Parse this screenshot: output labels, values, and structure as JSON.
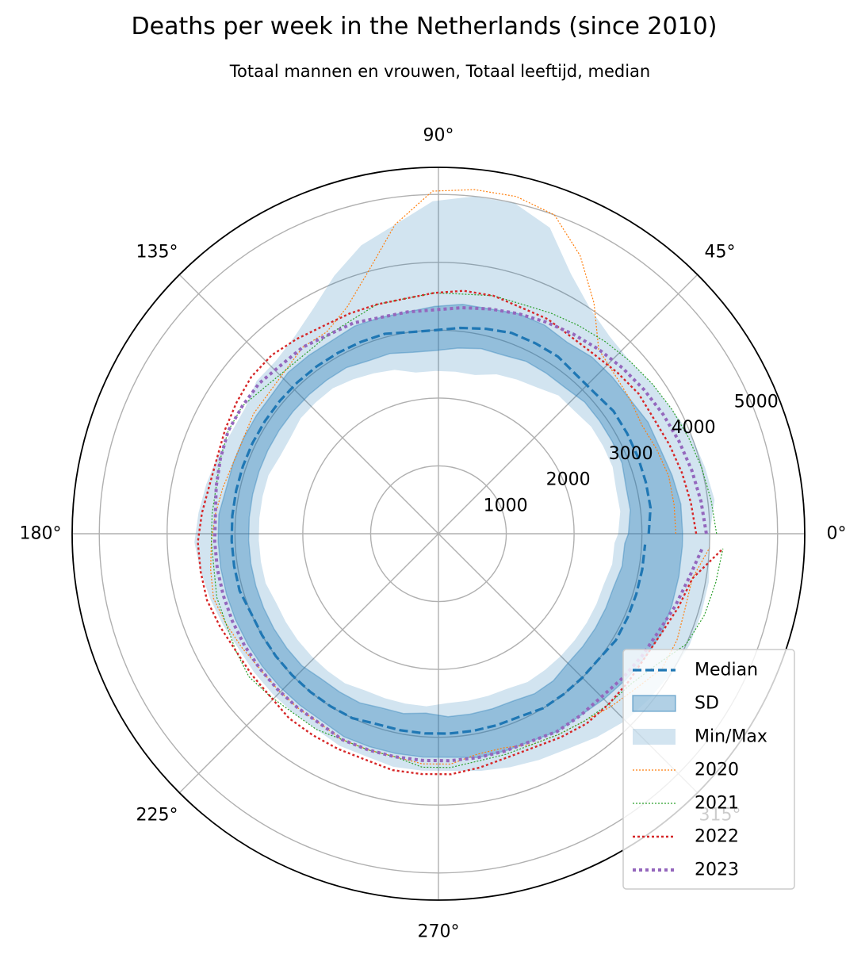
{
  "chart_data": {
    "type": "line",
    "projection": "polar",
    "title": "Deaths per week in the Netherlands (since 2010)",
    "subtitle": "Totaal mannen en vrouwen, Totaal leeftijd, median",
    "angle_ticks": [
      "0°",
      "45°",
      "90°",
      "135°",
      "180°",
      "225°",
      "270°",
      "315°"
    ],
    "radial_ticks": [
      1000,
      2000,
      3000,
      4000,
      5000
    ],
    "rlim": [
      0,
      5400
    ],
    "grid": true,
    "legend_position": "lower right",
    "colors": {
      "median": "#1f77b4",
      "sd": "#1f77b4",
      "minmax": "#1f77b4",
      "y2020": "#ff7f0e",
      "y2021": "#2ca02c",
      "y2022": "#d62728",
      "y2023": "#9467bd"
    },
    "legend": [
      "Median",
      "SD",
      "Min/Max",
      "2020",
      "2021",
      "2022",
      "2023"
    ],
    "x_unit": "degrees",
    "x": [
      0,
      7,
      14,
      21,
      28,
      35,
      42,
      49,
      56,
      63,
      70,
      77,
      84,
      91,
      98,
      105,
      112,
      119,
      126,
      133,
      140,
      147,
      154,
      161,
      168,
      175,
      182,
      189,
      196,
      203,
      210,
      217,
      224,
      231,
      238,
      245,
      252,
      259,
      266,
      273,
      280,
      287,
      294,
      301,
      308,
      315,
      322,
      329,
      336,
      343,
      350,
      357
    ],
    "series": [
      {
        "name": "Median",
        "values": [
          3100,
          3150,
          3150,
          3150,
          3150,
          3150,
          3100,
          3100,
          3150,
          3150,
          3150,
          3100,
          3050,
          3000,
          3000,
          3050,
          3050,
          3050,
          3050,
          3050,
          3050,
          3050,
          3050,
          3050,
          3050,
          3050,
          3050,
          3050,
          3050,
          3000,
          3000,
          3000,
          3000,
          3000,
          3000,
          3000,
          2950,
          2950,
          2950,
          2950,
          2950,
          2950,
          2950,
          3000,
          3000,
          3000,
          3000,
          3050,
          3050,
          3050,
          3050,
          3050
        ]
      },
      {
        "name": "SD_upper",
        "values": [
          3600,
          3600,
          3550,
          3500,
          3500,
          3450,
          3450,
          3450,
          3400,
          3450,
          3450,
          3400,
          3400,
          3350,
          3300,
          3300,
          3300,
          3250,
          3250,
          3250,
          3200,
          3200,
          3200,
          3200,
          3200,
          3250,
          3250,
          3250,
          3250,
          3250,
          3250,
          3250,
          3250,
          3250,
          3250,
          3300,
          3300,
          3300,
          3300,
          3300,
          3350,
          3350,
          3350,
          3400,
          3400,
          3450,
          3500,
          3550,
          3600,
          3600,
          3600,
          3600
        ]
      },
      {
        "name": "SD_lower",
        "values": [
          2800,
          2850,
          2850,
          2900,
          2900,
          2900,
          2900,
          2850,
          2850,
          2850,
          2800,
          2800,
          2750,
          2700,
          2700,
          2750,
          2750,
          2800,
          2800,
          2800,
          2800,
          2800,
          2800,
          2800,
          2800,
          2800,
          2800,
          2800,
          2800,
          2800,
          2800,
          2800,
          2800,
          2750,
          2750,
          2750,
          2700,
          2700,
          2650,
          2700,
          2700,
          2700,
          2700,
          2750,
          2750,
          2700,
          2700,
          2700,
          2700,
          2700,
          2750,
          2750
        ]
      },
      {
        "name": "Min/Max_upper",
        "values": [
          4000,
          4100,
          4050,
          4000,
          3900,
          3850,
          3800,
          3850,
          4000,
          4300,
          4800,
          5000,
          5000,
          4900,
          4600,
          4400,
          4100,
          3800,
          3600,
          3500,
          3500,
          3400,
          3400,
          3450,
          3500,
          3550,
          3600,
          3550,
          3500,
          3450,
          3400,
          3400,
          3400,
          3400,
          3400,
          3450,
          3450,
          3500,
          3500,
          3500,
          3550,
          3600,
          3650,
          3700,
          3800,
          3900,
          3950,
          4000,
          4050,
          4050,
          4050,
          4000
        ]
      },
      {
        "name": "Min/Max_lower",
        "values": [
          2650,
          2700,
          2700,
          2750,
          2750,
          2750,
          2700,
          2700,
          2600,
          2550,
          2500,
          2400,
          2400,
          2400,
          2400,
          2500,
          2550,
          2600,
          2650,
          2650,
          2650,
          2600,
          2600,
          2650,
          2650,
          2650,
          2650,
          2650,
          2650,
          2600,
          2600,
          2600,
          2600,
          2600,
          2600,
          2550,
          2550,
          2550,
          2550,
          2500,
          2500,
          2500,
          2500,
          2550,
          2550,
          2550,
          2550,
          2550,
          2550,
          2550,
          2600,
          2600
        ]
      },
      {
        "name": "2020",
        "values": [
          3500,
          3500,
          3500,
          3450,
          3400,
          3450,
          3500,
          3600,
          4100,
          4600,
          5000,
          5100,
          5100,
          5050,
          4600,
          4000,
          3600,
          3400,
          3400,
          3300,
          3250,
          3250,
          3200,
          3200,
          3250,
          3300,
          3350,
          3400,
          3450,
          3400,
          3350,
          3300,
          3300,
          3300,
          3300,
          3350,
          3350,
          3350,
          3400,
          3400,
          3300,
          3300,
          3400,
          3450,
          3500,
          3600,
          3700,
          3850,
          3850,
          3800,
          3800,
          4000
        ]
      },
      {
        "name": "2021",
        "values": [
          4100,
          4050,
          4000,
          3950,
          3900,
          3850,
          3800,
          3750,
          3700,
          3650,
          3600,
          3600,
          3550,
          3550,
          3500,
          3500,
          3400,
          3350,
          3300,
          3300,
          3350,
          3450,
          3450,
          3400,
          3350,
          3350,
          3350,
          3350,
          3400,
          3400,
          3450,
          3500,
          3450,
          3400,
          3400,
          3350,
          3350,
          3350,
          3450,
          3450,
          3400,
          3400,
          3400,
          3450,
          3500,
          3550,
          3600,
          3750,
          4000,
          4100,
          4150,
          4200
        ]
      },
      {
        "name": "2022",
        "values": [
          3800,
          3750,
          3700,
          3650,
          3600,
          3600,
          3550,
          3500,
          3500,
          3550,
          3550,
          3600,
          3600,
          3550,
          3500,
          3500,
          3500,
          3500,
          3550,
          3600,
          3600,
          3550,
          3500,
          3450,
          3450,
          3500,
          3550,
          3550,
          3550,
          3500,
          3450,
          3450,
          3450,
          3500,
          3500,
          3500,
          3500,
          3550,
          3550,
          3550,
          3500,
          3450,
          3450,
          3500,
          3550,
          3550,
          3550,
          3550,
          3600,
          3700,
          3800,
          4200
        ]
      },
      {
        "name": "2023",
        "values": [
          3950,
          3900,
          3850,
          3800,
          3750,
          3700,
          3650,
          3600,
          3550,
          3500,
          3450,
          3400,
          3350,
          3300,
          3300,
          3300,
          3350,
          3350,
          3400,
          3400,
          3450,
          3450,
          3450,
          3400,
          3350,
          3300,
          3300,
          3300,
          3300,
          3300,
          3300,
          3300,
          3300,
          3300,
          3300,
          3350,
          3350,
          3350,
          3350,
          3350,
          3350,
          3350,
          3350,
          3400,
          3400,
          3400,
          3450,
          3500,
          3550,
          3650,
          3750,
          3900
        ]
      }
    ]
  }
}
